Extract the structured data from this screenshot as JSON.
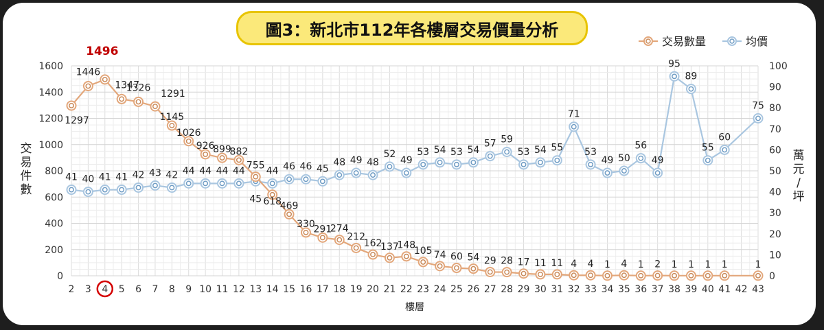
{
  "chart_data": {
    "type": "line",
    "title": "圖3：新北市112年各樓層交易價量分析",
    "xlabel": "樓層",
    "ylabel": "交易件數",
    "y2label": "萬元/坪",
    "x": [
      2,
      3,
      4,
      5,
      6,
      7,
      8,
      9,
      10,
      11,
      12,
      13,
      14,
      15,
      16,
      17,
      18,
      19,
      20,
      21,
      22,
      23,
      24,
      25,
      26,
      27,
      28,
      29,
      30,
      31,
      32,
      33,
      34,
      35,
      36,
      37,
      38,
      39,
      40,
      41,
      42,
      43
    ],
    "ylim": [
      0,
      1600
    ],
    "y2lim": [
      0,
      100
    ],
    "yticks": [
      "0",
      "200",
      "400",
      "600",
      "800",
      "1000",
      "1200",
      "1400",
      "1600"
    ],
    "y2ticks": [
      "0",
      "10",
      "20",
      "30",
      "40",
      "50",
      "60",
      "70",
      "80",
      "90",
      "100"
    ],
    "grid": true,
    "legend": "top-right",
    "highlight_x": 4,
    "highlight_label": "1496",
    "series": [
      {
        "name": "交易數量",
        "axis": "left",
        "color": "#e3a77b",
        "values": [
          1297,
          1446,
          1496,
          1347,
          1326,
          1291,
          1145,
          1026,
          926,
          899,
          882,
          755,
          618,
          469,
          330,
          291,
          274,
          212,
          162,
          137,
          148,
          105,
          74,
          60,
          54,
          29,
          28,
          17,
          11,
          11,
          4,
          4,
          1,
          4,
          1,
          2,
          1,
          1,
          1,
          1,
          null,
          1
        ]
      },
      {
        "name": "均價",
        "axis": "right",
        "color": "#a9c6e0",
        "values": [
          41,
          40,
          41,
          41,
          42,
          43,
          42,
          44,
          44,
          44,
          44,
          45,
          44,
          46,
          46,
          45,
          48,
          49,
          48,
          52,
          49,
          53,
          54,
          53,
          54,
          57,
          59,
          53,
          54,
          55,
          71,
          53,
          49,
          50,
          56,
          49,
          95,
          89,
          55,
          60,
          null,
          75
        ]
      }
    ]
  }
}
